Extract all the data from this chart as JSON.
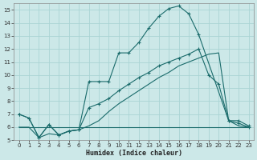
{
  "xlabel": "Humidex (Indice chaleur)",
  "background_color": "#cce8e8",
  "grid_color": "#aad4d4",
  "line_color": "#1a6b6b",
  "xlim": [
    -0.5,
    23.5
  ],
  "ylim": [
    5,
    15.5
  ],
  "yticks": [
    5,
    6,
    7,
    8,
    9,
    10,
    11,
    12,
    13,
    14,
    15
  ],
  "xticks": [
    0,
    1,
    2,
    3,
    4,
    5,
    6,
    7,
    8,
    9,
    10,
    11,
    12,
    13,
    14,
    15,
    16,
    17,
    18,
    19,
    20,
    21,
    22,
    23
  ],
  "line1_x": [
    0,
    1,
    2,
    3,
    4,
    5,
    6,
    7,
    8,
    9,
    10,
    11,
    12,
    13,
    14,
    15,
    16,
    17,
    18,
    21,
    22,
    23
  ],
  "line1_y": [
    7.0,
    6.7,
    5.2,
    6.2,
    5.4,
    5.7,
    5.8,
    9.5,
    9.5,
    9.5,
    11.7,
    11.7,
    12.5,
    13.6,
    14.5,
    15.1,
    15.3,
    14.7,
    13.1,
    6.5,
    6.5,
    6.1
  ],
  "line2_x": [
    0,
    1,
    2,
    3,
    4,
    5,
    6,
    7,
    8,
    9,
    10,
    11,
    12,
    13,
    14,
    15,
    16,
    17,
    18,
    19,
    20,
    21,
    22,
    23
  ],
  "line2_y": [
    6.0,
    6.0,
    5.2,
    5.5,
    5.4,
    5.7,
    5.8,
    6.1,
    6.5,
    7.2,
    7.8,
    8.3,
    8.8,
    9.3,
    9.8,
    10.2,
    10.7,
    11.0,
    11.3,
    11.6,
    11.7,
    6.5,
    6.1,
    6.0
  ],
  "line3_x": [
    0,
    7,
    22,
    23
  ],
  "line3_y": [
    6.0,
    6.0,
    6.0,
    6.0
  ],
  "line4_x": [
    0,
    1,
    2,
    3,
    4,
    5,
    6,
    7,
    8,
    9,
    10,
    11,
    12,
    13,
    14,
    15,
    16,
    17,
    18,
    19,
    20,
    21,
    22,
    23
  ],
  "line4_y": [
    7.0,
    6.7,
    5.2,
    6.2,
    5.4,
    5.7,
    5.8,
    7.5,
    7.8,
    8.2,
    8.8,
    9.3,
    9.8,
    10.2,
    10.7,
    11.0,
    11.3,
    11.6,
    12.0,
    10.0,
    9.3,
    6.5,
    6.3,
    6.0
  ]
}
